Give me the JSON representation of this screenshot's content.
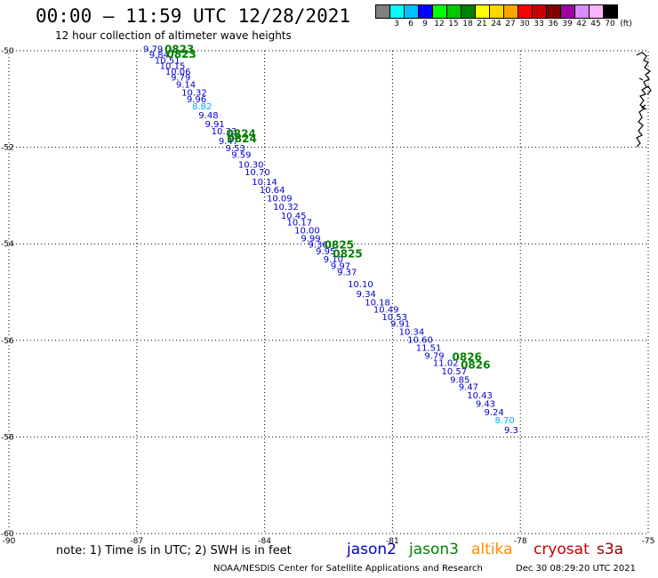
{
  "header": {
    "title": "00:00 – 11:59 UTC 12/28/2021",
    "subtitle": "12 hour collection of altimeter wave heights"
  },
  "legend": {
    "unit_label": "(ft)",
    "bins": [
      {
        "color": "#808080",
        "label": ""
      },
      {
        "color": "#00ffff",
        "label": "3"
      },
      {
        "color": "#00c0ff",
        "label": "6"
      },
      {
        "color": "#0000ff",
        "label": "9"
      },
      {
        "color": "#00ff00",
        "label": "12"
      },
      {
        "color": "#00c800",
        "label": "15"
      },
      {
        "color": "#008000",
        "label": "18"
      },
      {
        "color": "#ffff00",
        "label": "21"
      },
      {
        "color": "#ffd700",
        "label": "24"
      },
      {
        "color": "#ffa500",
        "label": "27"
      },
      {
        "color": "#ff0000",
        "label": "30"
      },
      {
        "color": "#c80000",
        "label": "33"
      },
      {
        "color": "#800000",
        "label": "36"
      },
      {
        "color": "#a000a0",
        "label": "39"
      },
      {
        "color": "#d78cff",
        "label": "42"
      },
      {
        "color": "#ffb4ff",
        "label": "45"
      },
      {
        "color": "#000000",
        "label": "70"
      }
    ]
  },
  "chart_data": {
    "type": "scatter",
    "x_axis": {
      "ticks": [
        "-90",
        "-87",
        "-84",
        "-81",
        "-78",
        "-75"
      ]
    },
    "y_axis": {
      "ticks": [
        "-50",
        "-52",
        "-54",
        "-56",
        "-58",
        "-60"
      ]
    },
    "xlim": [
      -90,
      -75
    ],
    "ylim": [
      -60,
      -50
    ],
    "grid": true,
    "colors": {
      "jason2": "#0000cc",
      "jason3": "#008000",
      "altika": "#ff8c00",
      "cryosat": "#c00000",
      "s3a": "#8b0000",
      "light": "#00aaff"
    },
    "points": [
      {
        "lon": -86.85,
        "lat": -50.03,
        "label": "9.79",
        "color": "#0000cc"
      },
      {
        "lon": -86.71,
        "lat": -50.15,
        "label": "9.84",
        "color": "#0000cc"
      },
      {
        "lon": -86.58,
        "lat": -50.27,
        "label": "10.51",
        "color": "#0000cc"
      },
      {
        "lon": -86.46,
        "lat": -50.38,
        "label": "10.15",
        "color": "#0000cc"
      },
      {
        "lon": -86.33,
        "lat": -50.5,
        "label": "10.06",
        "color": "#0000cc"
      },
      {
        "lon": -86.2,
        "lat": -50.62,
        "label": "9.79",
        "color": "#0000cc"
      },
      {
        "lon": -86.08,
        "lat": -50.76,
        "label": "9.14",
        "color": "#0000cc"
      },
      {
        "lon": -85.95,
        "lat": -50.93,
        "label": "10.32",
        "color": "#0000cc"
      },
      {
        "lon": -85.83,
        "lat": -51.07,
        "label": "9.96",
        "color": "#0000cc"
      },
      {
        "lon": -85.7,
        "lat": -51.22,
        "label": "8.82",
        "color": "#00aaff"
      },
      {
        "lon": -85.55,
        "lat": -51.4,
        "label": "9.48",
        "color": "#0000cc"
      },
      {
        "lon": -85.4,
        "lat": -51.58,
        "label": "9.91",
        "color": "#0000cc"
      },
      {
        "lon": -85.25,
        "lat": -51.73,
        "label": "10.33",
        "color": "#0000cc"
      },
      {
        "lon": -85.08,
        "lat": -51.93,
        "label": "9.47",
        "color": "#0000cc"
      },
      {
        "lon": -84.92,
        "lat": -52.08,
        "label": "9.53",
        "color": "#0000cc"
      },
      {
        "lon": -84.78,
        "lat": -52.22,
        "label": "9.59",
        "color": "#0000cc"
      },
      {
        "lon": -84.62,
        "lat": -52.42,
        "label": "10.30",
        "color": "#0000cc"
      },
      {
        "lon": -84.47,
        "lat": -52.58,
        "label": "10.70",
        "color": "#0000cc"
      },
      {
        "lon": -84.3,
        "lat": -52.78,
        "label": "10.14",
        "color": "#0000cc"
      },
      {
        "lon": -84.12,
        "lat": -52.95,
        "label": "10.64",
        "color": "#0000cc"
      },
      {
        "lon": -83.95,
        "lat": -53.12,
        "label": "10.09",
        "color": "#0000cc"
      },
      {
        "lon": -83.8,
        "lat": -53.3,
        "label": "10.32",
        "color": "#0000cc"
      },
      {
        "lon": -83.62,
        "lat": -53.48,
        "label": "10.45",
        "color": "#0000cc"
      },
      {
        "lon": -83.48,
        "lat": -53.62,
        "label": "10.17",
        "color": "#0000cc"
      },
      {
        "lon": -83.3,
        "lat": -53.78,
        "label": "10.00",
        "color": "#0000cc"
      },
      {
        "lon": -83.15,
        "lat": -53.95,
        "label": "9.99",
        "color": "#0000cc"
      },
      {
        "lon": -82.98,
        "lat": -54.08,
        "label": "9.36",
        "color": "#0000cc"
      },
      {
        "lon": -82.8,
        "lat": -54.22,
        "label": "9.95",
        "color": "#0000cc"
      },
      {
        "lon": -82.62,
        "lat": -54.38,
        "label": "9.10",
        "color": "#0000cc"
      },
      {
        "lon": -82.45,
        "lat": -54.52,
        "label": "9.97",
        "color": "#0000cc"
      },
      {
        "lon": -82.3,
        "lat": -54.65,
        "label": "9.37",
        "color": "#0000cc"
      },
      {
        "lon": -82.05,
        "lat": -54.9,
        "label": "10.10",
        "color": "#0000cc"
      },
      {
        "lon": -81.85,
        "lat": -55.1,
        "label": "9.34",
        "color": "#0000cc"
      },
      {
        "lon": -81.65,
        "lat": -55.28,
        "label": "10.18",
        "color": "#0000cc"
      },
      {
        "lon": -81.45,
        "lat": -55.42,
        "label": "10.49",
        "color": "#0000cc"
      },
      {
        "lon": -81.25,
        "lat": -55.58,
        "label": "10.53",
        "color": "#0000cc"
      },
      {
        "lon": -81.05,
        "lat": -55.72,
        "label": "9.91",
        "color": "#0000cc"
      },
      {
        "lon": -80.85,
        "lat": -55.88,
        "label": "10.34",
        "color": "#0000cc"
      },
      {
        "lon": -80.65,
        "lat": -56.05,
        "label": "10.60",
        "color": "#0000cc"
      },
      {
        "lon": -80.45,
        "lat": -56.22,
        "label": "11.51",
        "color": "#0000cc"
      },
      {
        "lon": -80.25,
        "lat": -56.38,
        "label": "9.79",
        "color": "#0000cc"
      },
      {
        "lon": -80.05,
        "lat": -56.53,
        "label": "11.02",
        "color": "#0000cc"
      },
      {
        "lon": -79.85,
        "lat": -56.7,
        "label": "10.57",
        "color": "#0000cc"
      },
      {
        "lon": -79.65,
        "lat": -56.88,
        "label": "9.85",
        "color": "#0000cc"
      },
      {
        "lon": -79.45,
        "lat": -57.03,
        "label": "9.47",
        "color": "#0000cc"
      },
      {
        "lon": -79.25,
        "lat": -57.2,
        "label": "10.43",
        "color": "#0000cc"
      },
      {
        "lon": -79.05,
        "lat": -57.38,
        "label": "9.43",
        "color": "#0000cc"
      },
      {
        "lon": -78.85,
        "lat": -57.55,
        "label": "9.24",
        "color": "#0000cc"
      },
      {
        "lon": -78.6,
        "lat": -57.72,
        "label": "8.70",
        "color": "#00aaff"
      },
      {
        "lon": -78.38,
        "lat": -57.92,
        "label": "9.3",
        "color": "#0000cc"
      }
    ],
    "pass_dates": [
      {
        "lon": -86.35,
        "lat": -50.05,
        "label": "0823"
      },
      {
        "lon": -86.3,
        "lat": -50.15,
        "label": "0823"
      },
      {
        "lon": -84.9,
        "lat": -51.8,
        "label": "0824"
      },
      {
        "lon": -84.88,
        "lat": -51.9,
        "label": "0824"
      },
      {
        "lon": -82.6,
        "lat": -54.1,
        "label": "0825"
      },
      {
        "lon": -82.4,
        "lat": -54.28,
        "label": "0825"
      },
      {
        "lon": -79.6,
        "lat": -56.42,
        "label": "0826"
      },
      {
        "lon": -79.4,
        "lat": -56.58,
        "label": "0826"
      }
    ]
  },
  "footer": {
    "note": "note: 1) Time is in UTC; 2) SWH is in feet",
    "satellites": [
      {
        "name": "jason2",
        "color": "#0000cc"
      },
      {
        "name": "jason3",
        "color": "#008000"
      },
      {
        "name": "altika",
        "color": "#ff8c00"
      },
      {
        "name": "cryosat",
        "color": "#c00000"
      },
      {
        "name": "s3a",
        "color": "#8b0000"
      }
    ],
    "credit": "NOAA/NESDIS Center for Satellite Applications and Research",
    "timestamp": "Dec 30 08:29:20 UTC 2021"
  }
}
